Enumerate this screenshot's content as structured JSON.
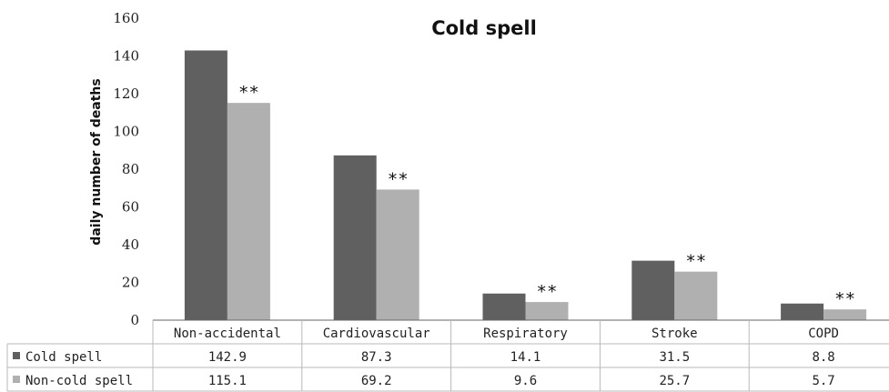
{
  "chart_data": {
    "type": "bar",
    "title": "Cold spell",
    "ylabel": "daily number of deaths",
    "ylim": [
      0,
      160
    ],
    "yticks": [
      0,
      20,
      40,
      60,
      80,
      100,
      120,
      140,
      160
    ],
    "categories": [
      "Non-accidental",
      "Cardiovascular",
      "Respiratory",
      "Stroke",
      "COPD"
    ],
    "series": [
      {
        "name": "Cold spell",
        "color": "#606060",
        "values": [
          142.9,
          87.3,
          14.1,
          31.5,
          8.8
        ],
        "labels": [
          "142.9",
          "87.3",
          "14.1",
          "31.5",
          "8.8"
        ]
      },
      {
        "name": "Non-cold spell",
        "color": "#b0b0b0",
        "values": [
          115.1,
          69.2,
          9.6,
          25.7,
          5.7
        ],
        "labels": [
          "115.1",
          "69.2",
          "9.6",
          "25.7",
          "5.7"
        ]
      }
    ],
    "annotations": [
      "**",
      "**",
      "**",
      "**",
      "**"
    ],
    "grid": false,
    "legend": "data-table"
  }
}
